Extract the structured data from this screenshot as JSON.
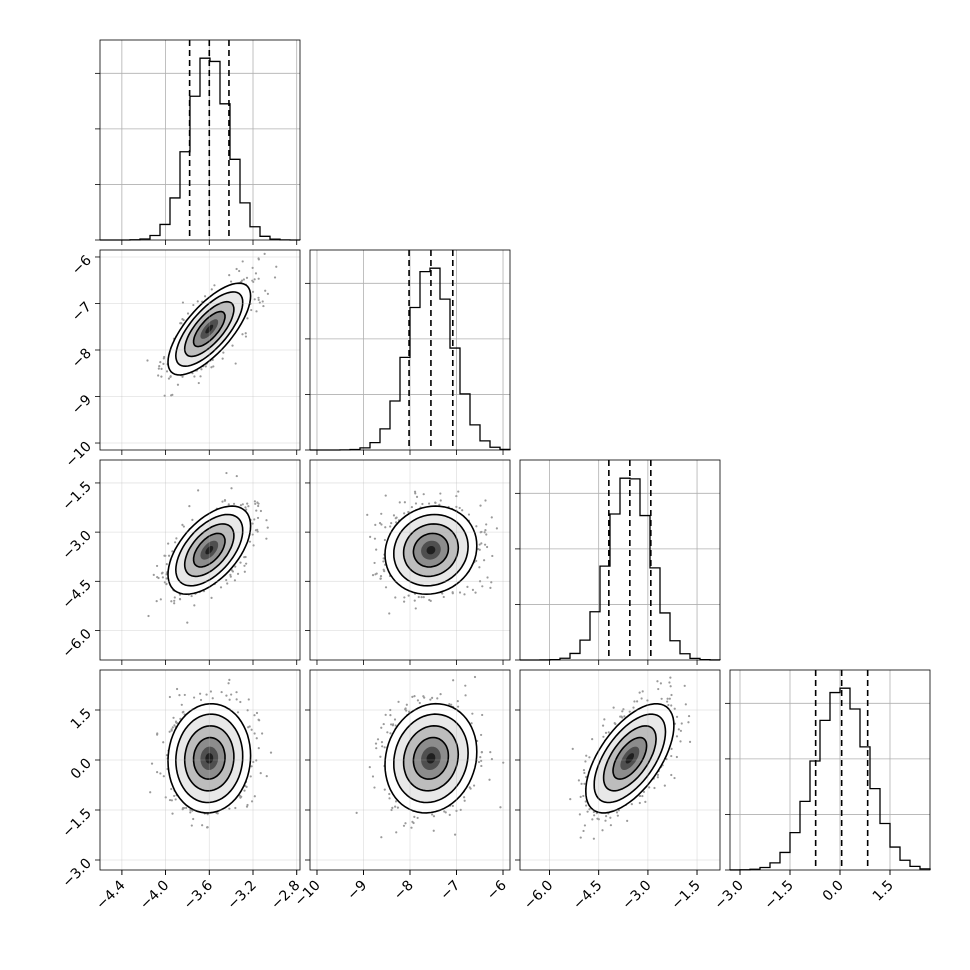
{
  "chart_data": {
    "type": "corner",
    "parameters": [
      {
        "mean": -3.6,
        "sd": 0.18,
        "range": [
          -4.6,
          -2.77
        ],
        "quantiles": [
          -3.78,
          -3.6,
          -3.42
        ],
        "ticks": [
          -4.4,
          -4.0,
          -3.6,
          -3.2,
          -2.8
        ],
        "tick_labels": [
          "−4.4",
          "−4.0",
          "−3.6",
          "−3.2",
          "−2.8"
        ]
      },
      {
        "mean": -7.55,
        "sd": 0.47,
        "range": [
          -10.15,
          -5.85
        ],
        "quantiles": [
          -8.02,
          -7.55,
          -7.08
        ],
        "ticks": [
          -10,
          -9,
          -8,
          -7,
          -6
        ],
        "tick_labels": [
          "−10",
          "−9",
          "−8",
          "−7",
          "−6"
        ]
      },
      {
        "mean": -3.55,
        "sd": 0.64,
        "range": [
          -6.9,
          -0.8
        ],
        "quantiles": [
          -4.19,
          -3.55,
          -2.91
        ],
        "ticks": [
          -6.0,
          -4.5,
          -3.0,
          -1.5
        ],
        "tick_labels": [
          "−6.0",
          "−4.5",
          "−3.0",
          "−1.5"
        ]
      },
      {
        "mean": 0.05,
        "sd": 0.78,
        "range": [
          -3.3,
          2.7
        ],
        "quantiles": [
          -0.73,
          0.05,
          0.83
        ],
        "ticks": [
          -3.0,
          -1.5,
          0.0,
          1.5
        ],
        "tick_labels": [
          "−3.0",
          "−1.5",
          "0.0",
          "1.5"
        ]
      }
    ],
    "correlations": {
      "1-0": 0.72,
      "2-0": 0.55,
      "2-1": 0.1,
      "3-0": 0.05,
      "3-1": 0.12,
      "3-2": 0.6
    },
    "histogram_bins": 20,
    "quantile_lines": "dashed",
    "grid": true,
    "point_color": "#9a9a9a",
    "density_colors": [
      "#ffffff",
      "#e8e8e8",
      "#bdbdbd",
      "#8c8c8c",
      "#4f4f4f",
      "#1f1f1f",
      "#000000"
    ]
  }
}
